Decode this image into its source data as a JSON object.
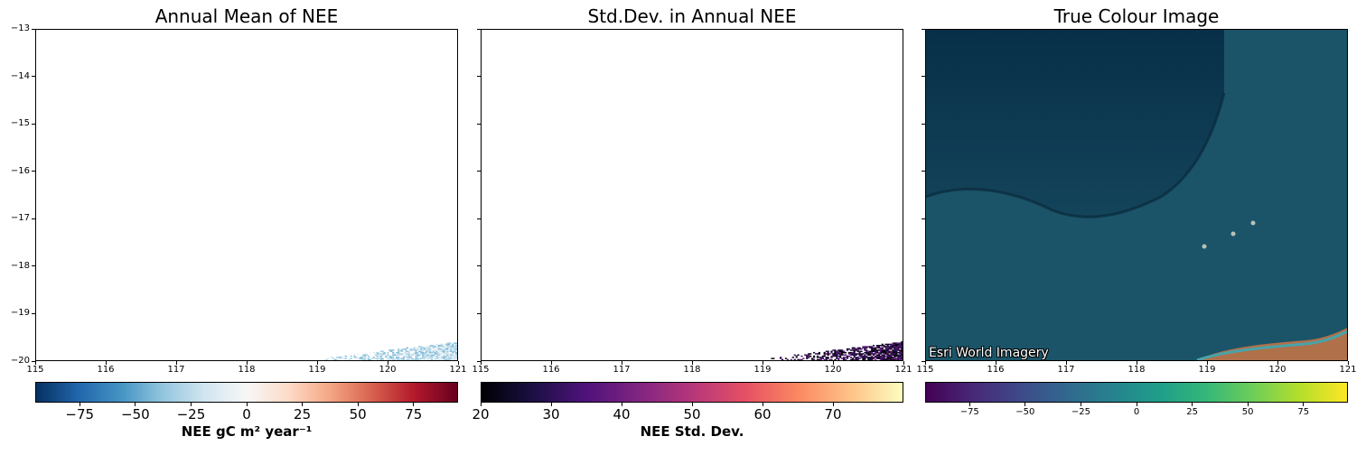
{
  "chart_data": [
    {
      "type": "heatmap",
      "title": "Annual Mean of NEE",
      "xlim": [
        115,
        121
      ],
      "ylim": [
        -20,
        -13
      ],
      "x_ticks": [
        115,
        116,
        117,
        118,
        119,
        120,
        121
      ],
      "y_ticks": [
        -13,
        -14,
        -15,
        -16,
        -17,
        -18,
        -19,
        -20
      ],
      "colormap": "RdBu_r",
      "colorbar": {
        "label": "NEE gC m² year⁻¹",
        "range": [
          -95,
          95
        ],
        "ticks": [
          -75,
          -50,
          -25,
          0,
          25,
          50,
          75
        ],
        "tick_labels": [
          "−75",
          "−50",
          "−25",
          "0",
          "25",
          "50",
          "75"
        ]
      },
      "data_note_region": {
        "lon": [
          119.1,
          121
        ],
        "lat": [
          -20,
          -19.6
        ],
        "typical_value": -25
      }
    },
    {
      "type": "heatmap",
      "title": "Std.Dev. in Annual NEE",
      "xlim": [
        115,
        121
      ],
      "ylim": [
        -20,
        -13
      ],
      "x_ticks": [
        115,
        116,
        117,
        118,
        119,
        120,
        121
      ],
      "colormap": "magma",
      "colorbar": {
        "label": "NEE Std. Dev.",
        "range": [
          20,
          80
        ],
        "ticks": [
          20,
          30,
          40,
          50,
          60,
          70
        ],
        "tick_labels": [
          "20",
          "30",
          "40",
          "50",
          "60",
          "70"
        ]
      },
      "data_note_region": {
        "lon": [
          119.1,
          121
        ],
        "lat": [
          -20,
          -19.6
        ],
        "typical_value": 28
      }
    },
    {
      "type": "image",
      "title": "True Colour Image",
      "xlim": [
        115,
        121
      ],
      "ylim": [
        -20,
        -13
      ],
      "x_ticks": [
        115,
        116,
        117,
        118,
        119,
        120,
        121
      ],
      "attribution": "Esri World Imagery",
      "colormap": "viridis",
      "colorbar": {
        "range": [
          -95,
          95
        ],
        "ticks": [
          -75,
          -50,
          -25,
          0,
          25,
          50,
          75
        ],
        "tick_labels": [
          "−75",
          "−50",
          "−25",
          "0",
          "25",
          "50",
          "75"
        ]
      }
    }
  ],
  "colors": {
    "rdbu": [
      "#053061",
      "#2166ac",
      "#4393c3",
      "#92c5de",
      "#d1e5f0",
      "#f7f7f7",
      "#fddbc7",
      "#f4a582",
      "#d6604d",
      "#b2182b",
      "#67001f"
    ],
    "magma": [
      "#000004",
      "#1c1044",
      "#4f127b",
      "#812581",
      "#b5367a",
      "#e55064",
      "#fb8761",
      "#fec287",
      "#fcfdbf"
    ],
    "viridis": [
      "#440154",
      "#482878",
      "#3e4989",
      "#31688e",
      "#26828e",
      "#1f9e89",
      "#35b779",
      "#6ece58",
      "#b5de2b",
      "#fde725"
    ],
    "ocean_deep": "#072f48",
    "ocean_shelf": "#1d5468"
  }
}
